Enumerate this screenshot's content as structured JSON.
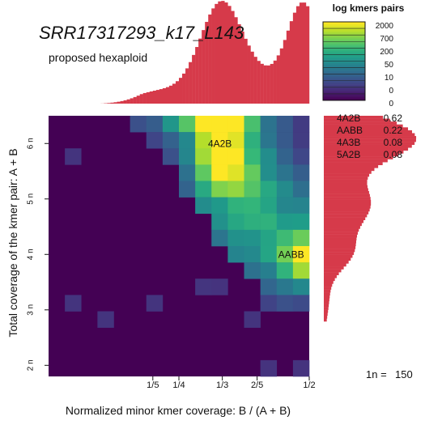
{
  "chart_data": {
    "type": "heatmap",
    "title": "SRR17317293_k17_L143",
    "subtitle": "proposed hexaploid",
    "xlabel": "Normalized minor kmer coverage: B / (A + B)",
    "ylabel": "Total coverage of the kmer pair: A + B",
    "xlim": [
      0,
      0.5
    ],
    "ylim": [
      1.8,
      6.5
    ],
    "x_ticks": [
      {
        "label": "1/5",
        "value": 0.2
      },
      {
        "label": "1/4",
        "value": 0.25
      },
      {
        "label": "1/3",
        "value": 0.3333
      },
      {
        "label": "2/5",
        "value": 0.4
      },
      {
        "label": "1/2",
        "value": 0.5
      }
    ],
    "y_ticks": [
      {
        "label": "2 n",
        "value": 2
      },
      {
        "label": "3 n",
        "value": 3
      },
      {
        "label": "4 n",
        "value": 4
      },
      {
        "label": "5 n",
        "value": 5
      },
      {
        "label": "6 n",
        "value": 6
      }
    ],
    "peaks": [
      {
        "label": "4A2B",
        "x": 0.3333,
        "y": 6.0
      },
      {
        "label": "AABB",
        "x": 0.47,
        "y": 4.0
      }
    ],
    "colorbar": {
      "title": "log kmers pairs",
      "tick_labels": [
        "2000",
        "700",
        "200",
        "50",
        "10",
        "0",
        "0"
      ]
    },
    "genome_proportions": [
      {
        "label": "4A2B",
        "value": "0.62"
      },
      {
        "label": "AABB",
        "value": "0.22"
      },
      {
        "label": "4A3B",
        "value": "0.08"
      },
      {
        "label": "5A2B",
        "value": "0.08"
      }
    ],
    "n_label": "1n =",
    "n_value": "150",
    "top_histogram": "Marginal distribution of B/(A+B): small rise near 0.2, peak near 1/3, sharp peak near 1/2",
    "right_histogram": "Marginal distribution of A+B: peak near 4n and strong peak near 6n",
    "bar_color": "#d63a4a",
    "background_color": "#440154"
  }
}
